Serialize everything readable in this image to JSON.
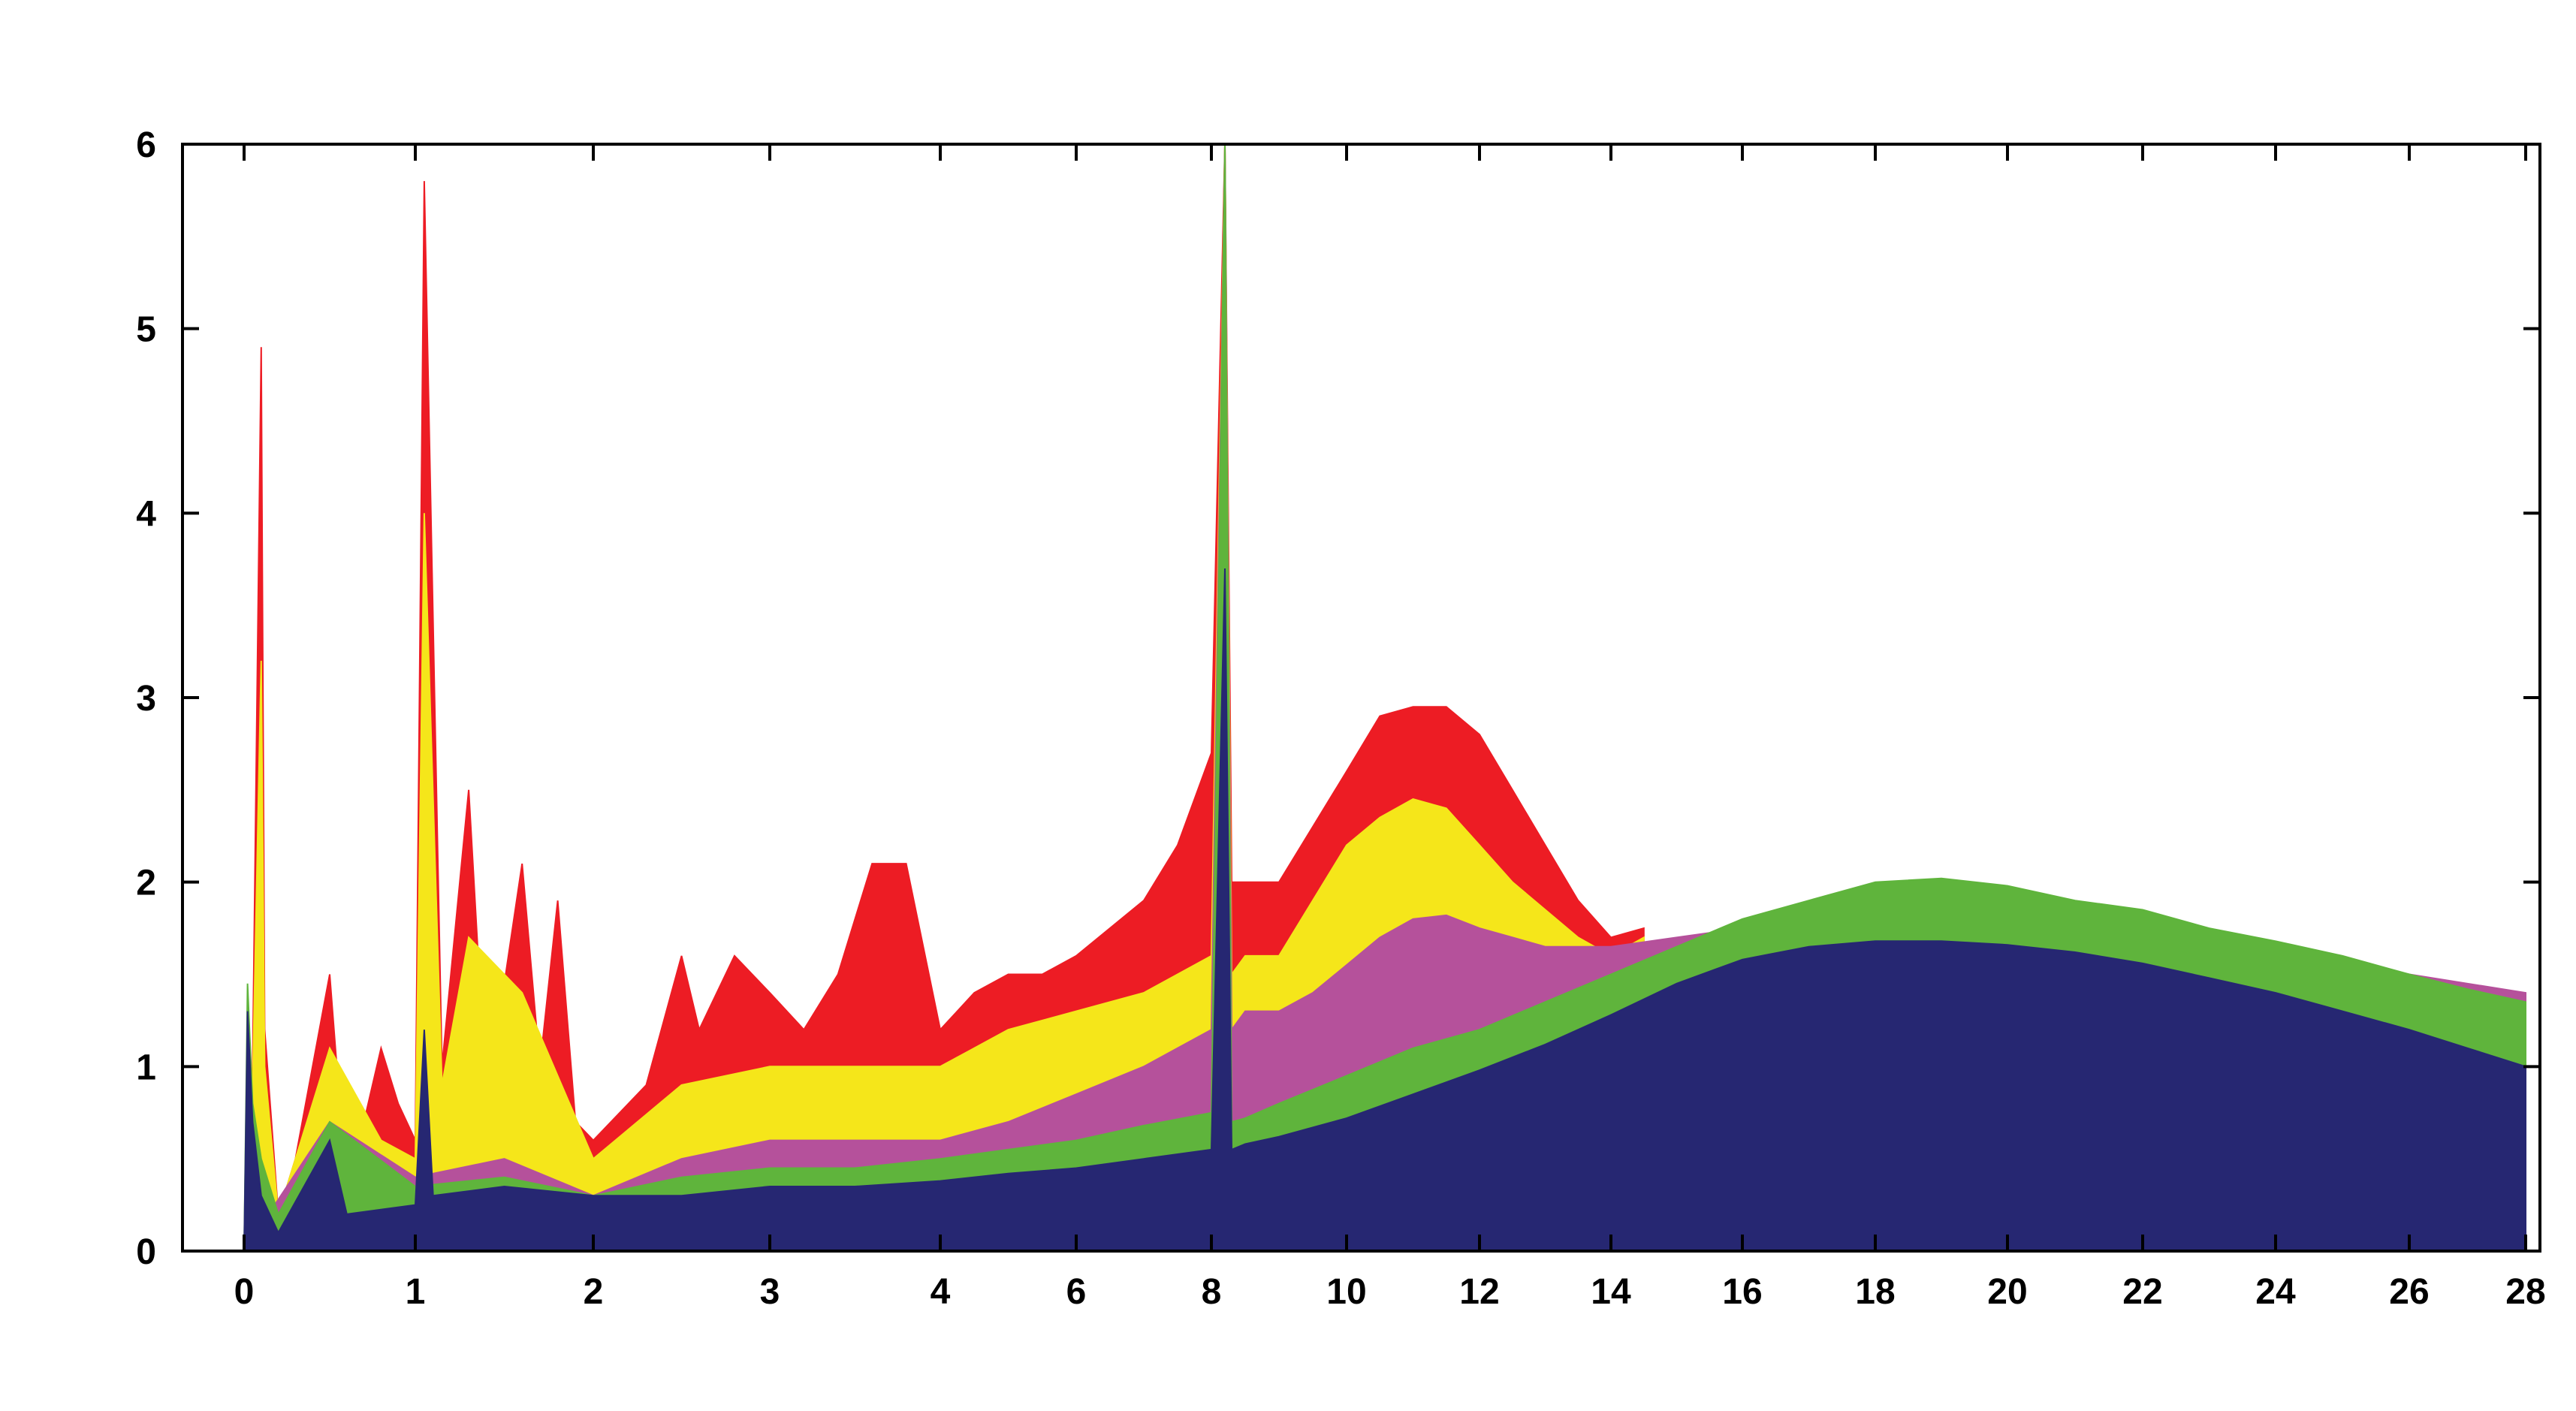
{
  "chart_data": {
    "type": "area",
    "title": "",
    "xlabel": "",
    "ylabel": "",
    "ylim": [
      0,
      6
    ],
    "x_tick_labels": [
      "0",
      "1",
      "2",
      "3",
      "4",
      "6",
      "8",
      "10",
      "12",
      "14",
      "16",
      "18",
      "20",
      "22",
      "24",
      "26",
      "28"
    ],
    "y_tick_labels": [
      "0",
      "1",
      "2",
      "3",
      "4",
      "5",
      "6"
    ],
    "x_axis_note": "non-uniform x axis: labels 0-4 in unit steps over the left portion, then 4-28 in steps of 2",
    "grid": false,
    "legend": "none",
    "series": [
      {
        "color": "#ed1c24",
        "x": [
          0,
          0.05,
          0.1,
          0.12,
          0.2,
          0.3,
          0.5,
          0.6,
          0.8,
          0.9,
          1.0,
          1.05,
          1.15,
          1.3,
          1.4,
          1.6,
          1.7,
          1.8,
          1.9,
          2.0,
          2.3,
          2.5,
          2.6,
          2.8,
          3.0,
          3.2,
          3.4,
          3.6,
          3.8,
          4.0,
          4.5,
          5.0,
          5.5,
          6.0,
          7.0,
          7.5,
          8.0,
          8.2,
          8.3,
          8.5,
          9.0,
          9.5,
          10.0,
          10.5,
          11.0,
          11.5,
          12.0,
          12.5,
          13.0,
          13.5,
          14.0,
          14.5
        ],
        "values": [
          0,
          1.0,
          4.9,
          1.2,
          0.2,
          0.5,
          1.5,
          0.3,
          1.1,
          0.8,
          0.6,
          5.8,
          1.0,
          2.5,
          0.8,
          2.1,
          1.0,
          1.9,
          0.7,
          0.6,
          0.9,
          1.6,
          1.2,
          1.6,
          1.4,
          1.2,
          1.5,
          2.1,
          2.1,
          1.2,
          1.4,
          1.5,
          1.5,
          1.6,
          1.9,
          2.2,
          2.7,
          6.0,
          2.0,
          2.0,
          2.0,
          2.3,
          2.6,
          2.9,
          2.95,
          2.95,
          2.8,
          2.5,
          2.2,
          1.9,
          1.7,
          1.75
        ]
      },
      {
        "color": "#f5e61a",
        "x": [
          0,
          0.05,
          0.1,
          0.12,
          0.2,
          0.5,
          0.8,
          1.0,
          1.05,
          1.15,
          1.3,
          1.6,
          2.0,
          2.5,
          3.0,
          3.5,
          4.0,
          4.5,
          5.0,
          6.0,
          7.0,
          8.0,
          8.2,
          8.3,
          8.5,
          9.0,
          9.5,
          10.0,
          10.5,
          11.0,
          11.5,
          12.0,
          12.5,
          13.0,
          13.5,
          14.0,
          14.5
        ],
        "values": [
          0,
          0.9,
          3.2,
          1.0,
          0.2,
          1.1,
          0.6,
          0.5,
          4.0,
          0.9,
          1.7,
          1.4,
          0.5,
          0.9,
          1.0,
          1.0,
          1.0,
          1.1,
          1.2,
          1.3,
          1.4,
          1.6,
          6.0,
          1.5,
          1.6,
          1.6,
          1.9,
          2.2,
          2.35,
          2.45,
          2.4,
          2.2,
          2.0,
          1.85,
          1.7,
          1.6,
          1.7
        ]
      },
      {
        "color": "#b5519b",
        "x": [
          0,
          0.5,
          1.0,
          1.5,
          2.0,
          2.5,
          3.0,
          3.5,
          4.0,
          5.0,
          6.0,
          7.0,
          8.0,
          8.2,
          8.3,
          8.5,
          9.0,
          9.5,
          10.0,
          10.5,
          11.0,
          11.5,
          12.0,
          12.5,
          13.0,
          14.0,
          15.0,
          16.0,
          17.0,
          18.0,
          19.0,
          20.0,
          22.0,
          24.0,
          26.0,
          28.0
        ],
        "values": [
          0,
          0.7,
          0.4,
          0.5,
          0.3,
          0.5,
          0.6,
          0.6,
          0.6,
          0.7,
          0.85,
          1.0,
          1.2,
          6.0,
          1.2,
          1.3,
          1.3,
          1.4,
          1.55,
          1.7,
          1.8,
          1.82,
          1.75,
          1.7,
          1.65,
          1.65,
          1.7,
          1.75,
          1.85,
          1.95,
          1.95,
          1.9,
          1.8,
          1.65,
          1.5,
          1.4
        ]
      },
      {
        "color": "#5fb43c",
        "x": [
          0,
          0.02,
          0.05,
          0.1,
          0.2,
          0.5,
          1.0,
          1.5,
          2.0,
          2.5,
          3.0,
          3.5,
          4.0,
          5.0,
          6.0,
          7.0,
          8.0,
          8.2,
          8.3,
          8.5,
          9.0,
          10.0,
          11.0,
          12.0,
          13.0,
          14.0,
          15.0,
          16.0,
          17.0,
          18.0,
          19.0,
          20.0,
          21.0,
          22.0,
          23.0,
          24.0,
          25.0,
          26.0,
          27.0,
          28.0
        ],
        "values": [
          0,
          1.45,
          0.8,
          0.5,
          0.2,
          0.7,
          0.35,
          0.4,
          0.3,
          0.4,
          0.45,
          0.45,
          0.5,
          0.55,
          0.6,
          0.68,
          0.75,
          6.0,
          0.7,
          0.72,
          0.8,
          0.95,
          1.1,
          1.2,
          1.35,
          1.5,
          1.65,
          1.8,
          1.9,
          2.0,
          2.02,
          1.98,
          1.9,
          1.85,
          1.75,
          1.68,
          1.6,
          1.5,
          1.42,
          1.35
        ]
      },
      {
        "color": "#262772",
        "x": [
          0,
          0.02,
          0.05,
          0.1,
          0.2,
          0.5,
          0.6,
          1.0,
          1.05,
          1.1,
          1.5,
          2.0,
          2.5,
          3.0,
          3.5,
          4.0,
          5.0,
          6.0,
          7.0,
          8.0,
          8.2,
          8.3,
          8.5,
          9.0,
          10.0,
          11.0,
          12.0,
          13.0,
          14.0,
          15.0,
          16.0,
          17.0,
          18.0,
          19.0,
          20.0,
          21.0,
          22.0,
          23.0,
          24.0,
          25.0,
          26.0,
          27.0,
          28.0
        ],
        "values": [
          0,
          1.3,
          0.7,
          0.3,
          0.1,
          0.6,
          0.2,
          0.25,
          1.2,
          0.3,
          0.35,
          0.3,
          0.3,
          0.35,
          0.35,
          0.38,
          0.42,
          0.45,
          0.5,
          0.55,
          3.7,
          0.55,
          0.58,
          0.62,
          0.72,
          0.85,
          0.98,
          1.12,
          1.28,
          1.45,
          1.58,
          1.65,
          1.68,
          1.68,
          1.66,
          1.62,
          1.56,
          1.48,
          1.4,
          1.3,
          1.2,
          1.1,
          1.0
        ]
      }
    ]
  }
}
